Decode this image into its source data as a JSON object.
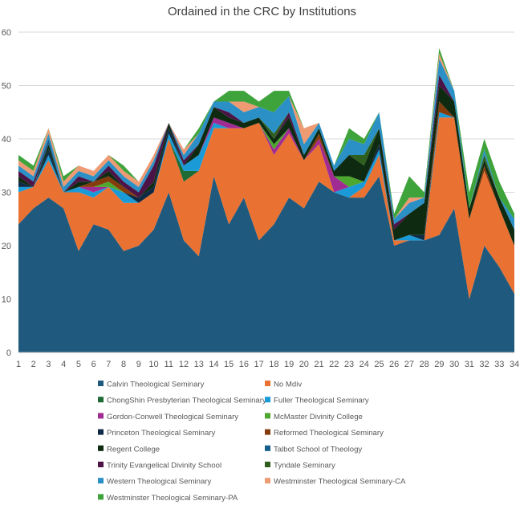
{
  "chart_data": {
    "type": "area",
    "stacked": true,
    "title": "Ordained in the CRC by Institutions",
    "xlabel": "",
    "ylabel": "",
    "x": [
      1,
      2,
      3,
      4,
      5,
      6,
      7,
      8,
      9,
      10,
      11,
      12,
      13,
      14,
      15,
      16,
      17,
      18,
      19,
      20,
      21,
      22,
      23,
      24,
      25,
      26,
      27,
      28,
      29,
      30,
      31,
      32,
      33,
      34
    ],
    "ylim": [
      0,
      60
    ],
    "yticks": [
      0,
      10,
      20,
      30,
      40,
      50,
      60
    ],
    "grid": "horizontal",
    "legend_position": "bottom",
    "series": [
      {
        "name": "Calvin Theological Seminary",
        "color": "#1f5a7e",
        "values": [
          24,
          27,
          29,
          27,
          19,
          24,
          23,
          19,
          20,
          23,
          30,
          21,
          18,
          33,
          24,
          29,
          21,
          24,
          29,
          27,
          32,
          30,
          29,
          29,
          33,
          20,
          21,
          21,
          22,
          27,
          10,
          20,
          16,
          11
        ]
      },
      {
        "name": "No Mdiv",
        "color": "#e97132",
        "values": [
          6,
          4,
          7,
          3,
          11,
          5,
          8,
          9,
          8,
          7,
          10,
          11,
          16,
          9,
          18,
          13,
          22,
          13,
          12,
          9,
          7,
          0,
          0,
          2,
          4,
          1,
          0,
          0,
          22,
          17,
          15,
          14,
          11,
          9
        ]
      },
      {
        "name": "ChongShin Presbyterian Theological Seminary",
        "color": "#1e6b35",
        "values": [
          0,
          0,
          0,
          0,
          0,
          0,
          0,
          0,
          0,
          0,
          0,
          2,
          0,
          0,
          0,
          0,
          0,
          0,
          0,
          0,
          0,
          0,
          0,
          0,
          0,
          0,
          0,
          0,
          0,
          0,
          0,
          0,
          0,
          0
        ]
      },
      {
        "name": "Fuller Theological Seminary",
        "color": "#1a9bd7",
        "values": [
          1,
          0,
          1,
          0,
          1,
          1,
          0,
          2,
          0,
          0,
          1,
          1,
          3,
          1,
          0,
          0,
          0,
          0,
          0,
          0,
          0,
          0,
          2,
          1,
          1,
          0,
          1,
          0,
          1,
          0,
          0,
          0,
          0,
          0
        ]
      },
      {
        "name": "Gordon-Conwell Theological Seminary",
        "color": "#a02b93",
        "values": [
          0,
          0,
          0,
          0,
          0,
          1,
          0,
          0,
          0,
          0,
          0,
          0,
          0,
          1,
          1,
          0,
          0,
          1,
          1,
          0,
          1,
          3,
          0,
          0,
          0,
          0,
          0,
          0,
          0,
          0,
          0,
          0,
          0,
          0
        ]
      },
      {
        "name": "McMaster Divinity College",
        "color": "#4ea72e",
        "values": [
          0,
          0,
          0,
          0,
          0,
          0,
          1,
          0,
          0,
          0,
          0,
          0,
          0,
          0,
          0,
          0,
          0,
          1,
          0,
          0,
          0,
          0,
          2,
          0,
          0,
          0,
          0,
          0,
          0,
          0,
          0,
          0,
          0,
          0
        ]
      },
      {
        "name": "Princeton Theological Seminary",
        "color": "#0f2a45",
        "values": [
          1,
          0,
          1,
          0,
          0,
          0,
          0,
          0,
          1,
          1,
          1,
          0,
          0,
          0,
          0,
          0,
          0,
          0,
          0,
          0,
          0,
          0,
          0,
          0,
          1,
          0,
          0,
          1,
          0,
          0,
          0,
          0,
          0,
          0
        ]
      },
      {
        "name": "Reformed Theological Seminary",
        "color": "#843c0c",
        "values": [
          0,
          0,
          0,
          0,
          0,
          1,
          1,
          1,
          0,
          0,
          0,
          0,
          0,
          0,
          0,
          0,
          0,
          0,
          0,
          0,
          1,
          0,
          0,
          0,
          0,
          0,
          0,
          0,
          2,
          0,
          0,
          1,
          0,
          0
        ]
      },
      {
        "name": "Regent College",
        "color": "#0e2b12",
        "values": [
          1,
          0,
          1,
          0,
          1,
          0,
          1,
          0,
          0,
          1,
          1,
          0,
          2,
          2,
          1,
          1,
          1,
          1,
          2,
          1,
          1,
          1,
          4,
          3,
          3,
          2,
          4,
          6,
          3,
          3,
          2,
          1,
          2,
          3
        ]
      },
      {
        "name": "Talbot School of Theology",
        "color": "#155e8a",
        "values": [
          0,
          0,
          1,
          0,
          0,
          0,
          0,
          0,
          0,
          0,
          0,
          0,
          0,
          0,
          0,
          0,
          0,
          0,
          0,
          0,
          0,
          0,
          0,
          0,
          0,
          0,
          0,
          0,
          0,
          0,
          0,
          0,
          0,
          0
        ]
      },
      {
        "name": "Trinity Evangelical Divinity School",
        "color": "#4c1446",
        "values": [
          1,
          1,
          0,
          0,
          1,
          0,
          1,
          1,
          1,
          3,
          0,
          1,
          0,
          0,
          1,
          0,
          0,
          0,
          1,
          0,
          0,
          0,
          0,
          0,
          0,
          1,
          0,
          0,
          2,
          0,
          0,
          0,
          0,
          0
        ]
      },
      {
        "name": "Tyndale Seminary",
        "color": "#2f5f1e",
        "values": [
          0,
          0,
          0,
          0,
          0,
          0,
          0,
          0,
          0,
          0,
          0,
          0,
          0,
          0,
          0,
          0,
          0,
          1,
          0,
          0,
          0,
          0,
          0,
          2,
          0,
          0,
          0,
          0,
          0,
          0,
          0,
          1,
          0,
          0
        ]
      },
      {
        "name": "Western Theological Seminary",
        "color": "#2a90c6",
        "values": [
          1,
          1,
          1,
          1,
          1,
          1,
          1,
          1,
          1,
          1,
          0,
          1,
          2,
          1,
          2,
          2,
          2,
          4,
          3,
          2,
          1,
          1,
          3,
          2,
          3,
          1,
          2,
          1,
          3,
          2,
          0,
          1,
          0,
          2
        ]
      },
      {
        "name": "Westminster Theological Seminary-CA",
        "color": "#ee9a72",
        "values": [
          1,
          1,
          1,
          1,
          1,
          1,
          1,
          1,
          1,
          1,
          0,
          1,
          0,
          0,
          0,
          2,
          0,
          0,
          0,
          3,
          0,
          0,
          0,
          0,
          0,
          0,
          1,
          0,
          1,
          0,
          0,
          0,
          0,
          0
        ]
      },
      {
        "name": "Westminster Theological Seminary-PA",
        "color": "#3fa33c",
        "values": [
          1,
          1,
          0,
          1,
          0,
          0,
          0,
          1,
          0,
          0,
          0,
          0,
          1,
          0,
          2,
          2,
          1,
          4,
          1,
          0,
          0,
          0,
          2,
          1,
          0,
          1,
          4,
          1,
          1,
          0,
          3,
          2,
          3,
          1
        ]
      }
    ]
  }
}
